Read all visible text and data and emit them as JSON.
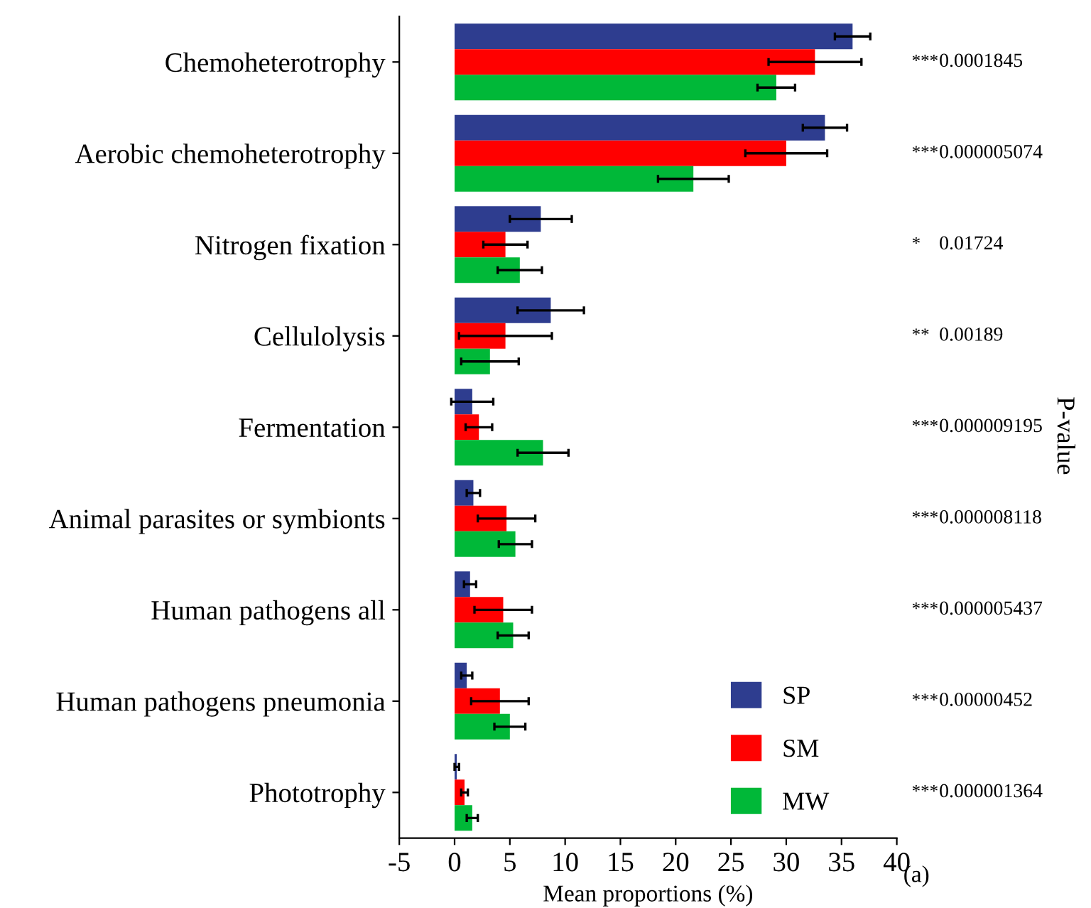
{
  "chart_data": {
    "type": "bar",
    "orientation": "horizontal",
    "xlabel": "Mean proportions (%)",
    "categories": [
      "Chemoheterotrophy",
      "Aerobic chemoheterotrophy",
      "Nitrogen fixation",
      "Cellulolysis",
      "Fermentation",
      "Animal parasites or symbionts",
      "Human pathogens all",
      "Human pathogens pneumonia",
      "Phototrophy"
    ],
    "series": [
      {
        "name": "SP",
        "color": "#2e3d8f",
        "values": [
          36.0,
          33.5,
          7.8,
          8.7,
          1.6,
          1.7,
          1.4,
          1.1,
          0.2
        ],
        "errors": [
          1.6,
          2.0,
          2.8,
          3.0,
          1.9,
          0.6,
          0.55,
          0.5,
          0.2
        ]
      },
      {
        "name": "SM",
        "color": "#ff0000",
        "values": [
          32.6,
          30.0,
          4.6,
          4.6,
          2.2,
          4.7,
          4.4,
          4.1,
          0.9
        ],
        "errors": [
          4.2,
          3.7,
          2.0,
          4.2,
          1.2,
          2.6,
          2.6,
          2.6,
          0.3
        ]
      },
      {
        "name": "MW",
        "color": "#00b838",
        "values": [
          29.1,
          21.6,
          5.9,
          3.2,
          8.0,
          5.5,
          5.3,
          5.0,
          1.6
        ],
        "errors": [
          1.7,
          3.2,
          2.0,
          2.6,
          2.3,
          1.5,
          1.4,
          1.4,
          0.5
        ]
      }
    ],
    "xlim": [
      -5,
      40
    ],
    "xticks": [
      -5,
      0,
      5,
      10,
      15,
      20,
      25,
      30,
      35,
      40
    ],
    "grid": false,
    "legend": "bottom right",
    "annotations": [
      "***",
      "0.0001845",
      "***",
      "0.000005074",
      "*",
      "0.01724",
      "**",
      "0.00189",
      "***",
      "0.000009195",
      "***",
      "0.000008118",
      "***",
      "0.000005437",
      "***",
      "0.00000452",
      "***",
      "0.000001364",
      "P-value",
      "(a)"
    ]
  }
}
